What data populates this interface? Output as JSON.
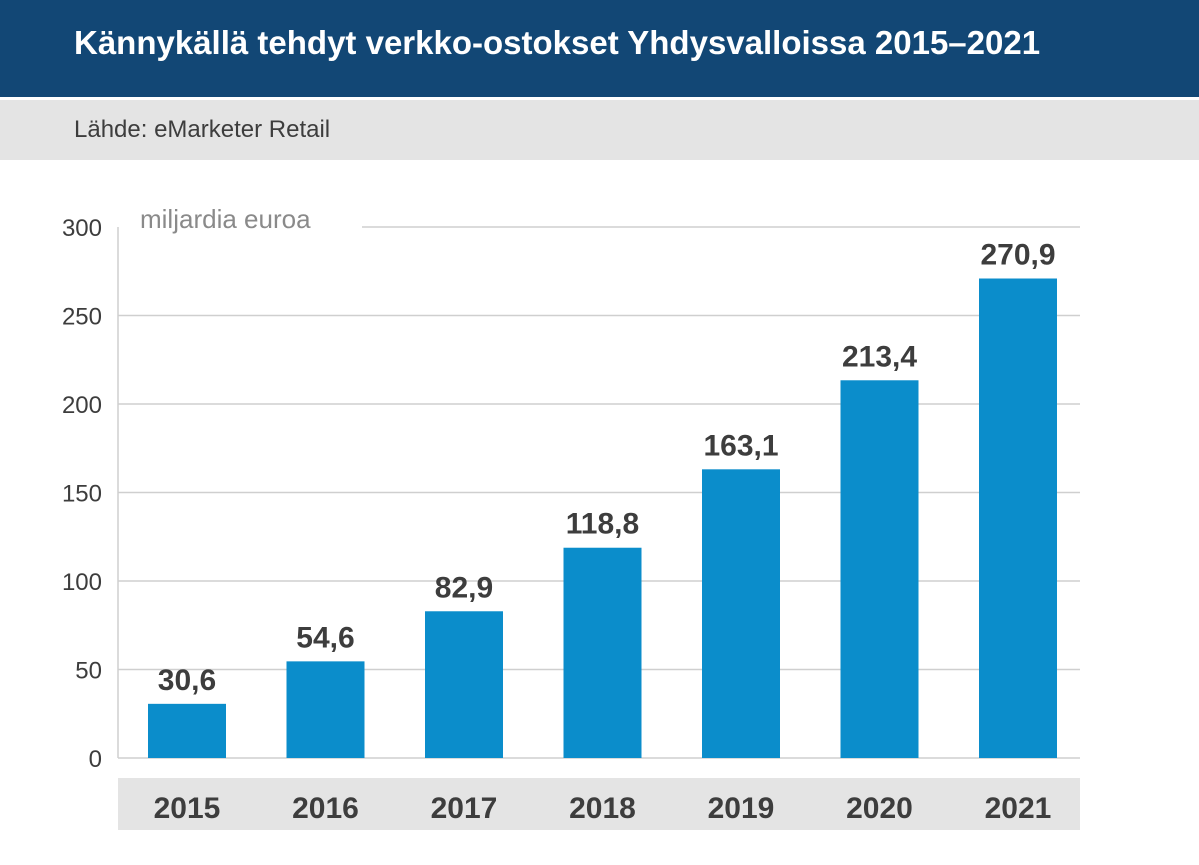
{
  "header": {
    "title": "Kännykällä tehdyt verkko-ostokset Yhdysvalloissa 2015–2021",
    "source": "Lähde: eMarketer Retail"
  },
  "colors": {
    "header_bg": "#124775",
    "source_bg": "#e4e4e4",
    "bar": "#0b8dcb",
    "grid": "#cfcfcf",
    "text": "#3d3d3d",
    "unit_text": "#8a8a8a",
    "category_band": "#e4e4e4"
  },
  "chart_data": {
    "type": "bar",
    "title": "Kännykällä tehdyt verkko-ostokset Yhdysvalloissa 2015–2021",
    "ylabel": "miljardia euroa",
    "xlabel": "",
    "categories": [
      "2015",
      "2016",
      "2017",
      "2018",
      "2019",
      "2020",
      "2021"
    ],
    "values": [
      30.6,
      54.6,
      82.9,
      118.8,
      163.1,
      213.4,
      270.9
    ],
    "value_labels": [
      "30,6",
      "54,6",
      "82,9",
      "118,8",
      "163,1",
      "213,4",
      "270,9"
    ],
    "ylim": [
      0,
      300
    ],
    "yticks": [
      0,
      50,
      100,
      150,
      200,
      250,
      300
    ],
    "grid": true,
    "legend": "none"
  }
}
